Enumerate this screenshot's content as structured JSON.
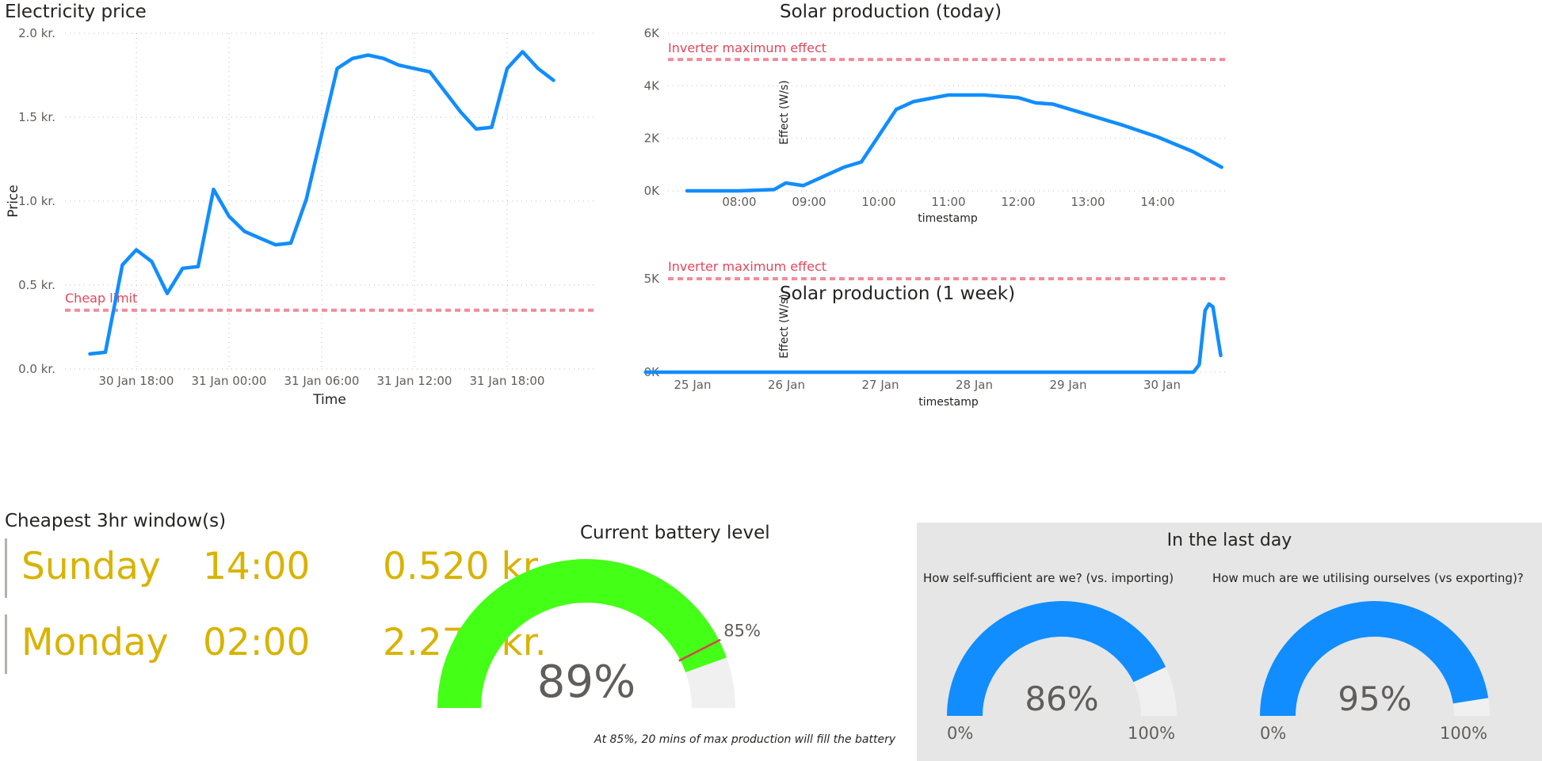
{
  "electricity": {
    "title": "Electricity price",
    "xlabel": "Time",
    "ylabel": "Price",
    "y_ticks": [
      "2.0 kr.",
      "1.5 kr.",
      "1.0 kr.",
      "0.5 kr.",
      "0.0 kr."
    ],
    "x_ticks": [
      "30 Jan 18:00",
      "31 Jan 00:00",
      "31 Jan 06:00",
      "31 Jan 12:00",
      "31 Jan 18:00"
    ],
    "refline_label": "Cheap limit"
  },
  "solar_today": {
    "title": "Solar production (today)",
    "xlabel": "timestamp",
    "ylabel": "Effect (W/s)",
    "y_ticks": [
      "6K",
      "4K",
      "2K",
      "0K"
    ],
    "x_ticks": [
      "08:00",
      "09:00",
      "10:00",
      "11:00",
      "12:00",
      "13:00",
      "14:00"
    ],
    "refline_label": "Inverter maximum effect"
  },
  "solar_week": {
    "title": "Solar production (1 week)",
    "xlabel": "timestamp",
    "ylabel": "Effect (W/s)",
    "y_ticks": [
      "5K",
      "0K"
    ],
    "x_ticks": [
      "25 Jan",
      "26 Jan",
      "27 Jan",
      "28 Jan",
      "29 Jan",
      "30 Jan"
    ],
    "refline_label": "Inverter maximum effect"
  },
  "cheapest": {
    "title": "Cheapest 3hr window(s)",
    "rows": [
      {
        "day": "Sunday",
        "time": "14:00",
        "price": "0.520 kr."
      },
      {
        "day": "Monday",
        "time": "02:00",
        "price": "2.270 kr."
      }
    ]
  },
  "battery": {
    "title": "Current battery level",
    "value": 89,
    "value_label": "89%",
    "target": 85,
    "target_label": "85%",
    "note": "At 85%, 20 mins of max production will fill the battery",
    "fill_color": "#44ff16",
    "target_color": "#d64550"
  },
  "last_day": {
    "title": "In the last day",
    "self_sufficient": {
      "question": "How self-sufficient are we? (vs. importing)",
      "value": 86,
      "value_label": "86%",
      "min_label": "0%",
      "max_label": "100%"
    },
    "utilisation": {
      "question": "How much are we utilising ourselves (vs exporting)?",
      "value": 95,
      "value_label": "95%",
      "min_label": "0%",
      "max_label": "100%"
    },
    "fill_color": "#118dff"
  },
  "colors": {
    "series": "#118dff",
    "refline": "#f28c9a",
    "cheap_text": "#d9b300",
    "gauge_track": "#f0f0f0"
  },
  "chart_data": [
    {
      "type": "line",
      "title": "Electricity price",
      "xlabel": "Time",
      "ylabel": "Price",
      "ylim": [
        0,
        2.0
      ],
      "x_unit": "hours relative to 30 Jan 18:00",
      "x": [
        -3,
        -2,
        -0.9,
        0,
        1,
        2,
        3,
        4,
        5,
        6,
        7,
        8,
        9,
        10,
        11,
        12,
        13,
        14,
        15,
        16,
        17,
        19,
        20,
        21,
        22,
        23,
        24,
        25,
        26,
        27
      ],
      "values": [
        0.09,
        0.1,
        0.62,
        0.71,
        0.64,
        0.45,
        0.6,
        0.61,
        1.07,
        0.91,
        0.82,
        0.78,
        0.74,
        0.75,
        1.01,
        1.4,
        1.79,
        1.85,
        1.87,
        1.85,
        1.81,
        1.77,
        1.65,
        1.53,
        1.43,
        1.44,
        1.79,
        1.89,
        1.79,
        1.72
      ],
      "x_ticks": [
        "30 Jan 18:00",
        "31 Jan 00:00",
        "31 Jan 06:00",
        "31 Jan 12:00",
        "31 Jan 18:00"
      ],
      "reference_lines": [
        {
          "label": "Cheap limit",
          "value": 0.35
        }
      ],
      "grid": true
    },
    {
      "type": "line",
      "title": "Solar production (today)",
      "xlabel": "timestamp",
      "ylabel": "Effect (W/s)",
      "ylim": [
        0,
        6000
      ],
      "x": [
        "07:15",
        "08:00",
        "08:30",
        "08:40",
        "08:55",
        "09:10",
        "09:30",
        "09:45",
        "10:00",
        "10:15",
        "10:30",
        "11:00",
        "11:30",
        "12:00",
        "12:15",
        "12:30",
        "13:00",
        "13:30",
        "14:00",
        "14:30",
        "14:55"
      ],
      "values": [
        0,
        0,
        50,
        300,
        200,
        500,
        900,
        1100,
        2100,
        3100,
        3400,
        3650,
        3650,
        3550,
        3350,
        3300,
        2900,
        2500,
        2050,
        1500,
        900
      ],
      "reference_lines": [
        {
          "label": "Inverter maximum effect",
          "value": 5000
        }
      ],
      "grid": true
    },
    {
      "type": "line",
      "title": "Solar production (1 week)",
      "xlabel": "timestamp",
      "ylabel": "Effect (W/s)",
      "ylim": [
        0,
        5500
      ],
      "x": [
        "24 Jan 12:00",
        "25 Jan",
        "26 Jan",
        "27 Jan",
        "28 Jan",
        "29 Jan",
        "30 Jan",
        "30 Jan 08:00",
        "30 Jan 09:30",
        "30 Jan 11:00",
        "30 Jan 12:00",
        "30 Jan 13:00",
        "30 Jan 14:00",
        "30 Jan 15:00"
      ],
      "values": [
        0,
        0,
        0,
        0,
        0,
        0,
        0,
        0,
        400,
        3300,
        3650,
        3500,
        2200,
        900
      ],
      "reference_lines": [
        {
          "label": "Inverter maximum effect",
          "value": 5000
        }
      ],
      "grid": true
    }
  ]
}
